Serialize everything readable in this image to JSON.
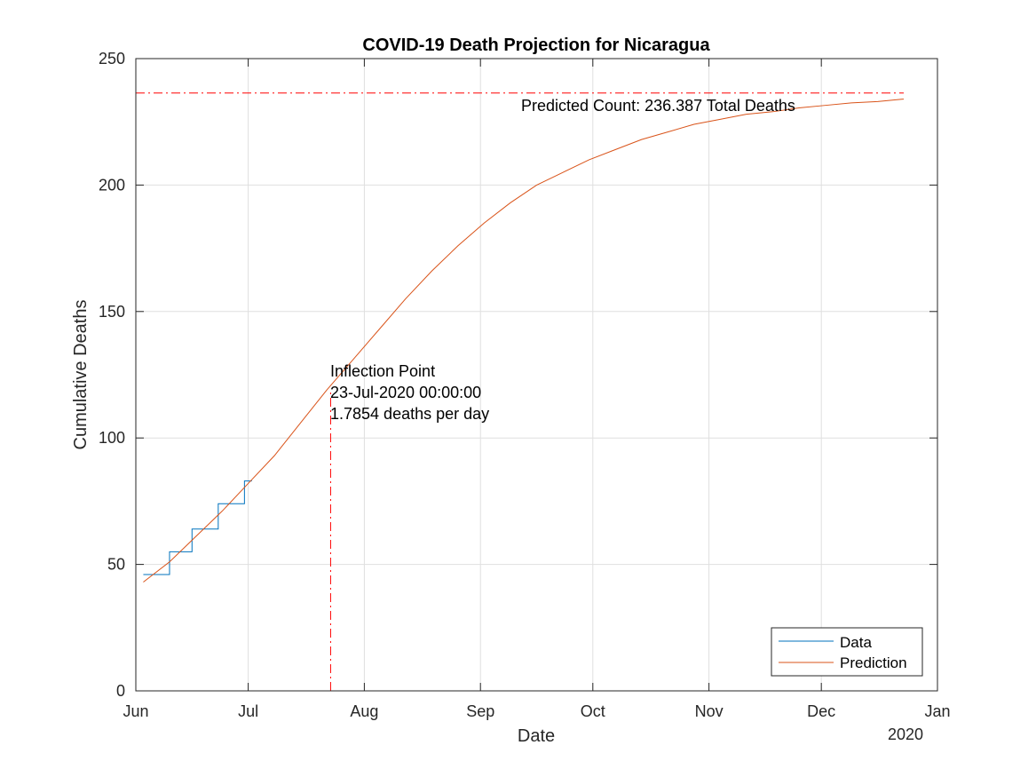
{
  "chart_data": {
    "type": "line",
    "title": "COVID-19 Death Projection for Nicaragua",
    "xlabel": "Date",
    "ylabel": "Cumulative Deaths",
    "x_axis_year_label": "2020",
    "xlim": [
      "2020-06-01",
      "2021-01-01"
    ],
    "ylim": [
      0,
      250
    ],
    "x_ticks": [
      {
        "date": "2020-06-01",
        "label": "Jun"
      },
      {
        "date": "2020-07-01",
        "label": "Jul"
      },
      {
        "date": "2020-08-01",
        "label": "Aug"
      },
      {
        "date": "2020-09-01",
        "label": "Sep"
      },
      {
        "date": "2020-10-01",
        "label": "Oct"
      },
      {
        "date": "2020-11-01",
        "label": "Nov"
      },
      {
        "date": "2020-12-01",
        "label": "Dec"
      },
      {
        "date": "2021-01-01",
        "label": "Jan"
      }
    ],
    "y_ticks": [
      0,
      50,
      100,
      150,
      200,
      250
    ],
    "grid": true,
    "legend_position": "bottom-right",
    "series": [
      {
        "name": "Data",
        "color": "#0072BD",
        "step": true,
        "points": [
          {
            "x": "2020-06-03",
            "y": 46
          },
          {
            "x": "2020-06-10",
            "y": 55
          },
          {
            "x": "2020-06-16",
            "y": 64
          },
          {
            "x": "2020-06-23",
            "y": 74
          },
          {
            "x": "2020-06-30",
            "y": 83
          },
          {
            "x": "2020-07-02",
            "y": 83
          }
        ]
      },
      {
        "name": "Prediction",
        "color": "#D95319",
        "points": [
          {
            "x": "2020-06-03",
            "y": 43
          },
          {
            "x": "2020-06-10",
            "y": 51
          },
          {
            "x": "2020-06-17",
            "y": 61
          },
          {
            "x": "2020-06-24",
            "y": 71
          },
          {
            "x": "2020-07-01",
            "y": 82
          },
          {
            "x": "2020-07-08",
            "y": 93
          },
          {
            "x": "2020-07-15",
            "y": 106
          },
          {
            "x": "2020-07-22",
            "y": 119
          },
          {
            "x": "2020-07-29",
            "y": 131
          },
          {
            "x": "2020-08-05",
            "y": 143
          },
          {
            "x": "2020-08-12",
            "y": 155
          },
          {
            "x": "2020-08-19",
            "y": 166
          },
          {
            "x": "2020-08-26",
            "y": 176
          },
          {
            "x": "2020-09-02",
            "y": 185
          },
          {
            "x": "2020-09-09",
            "y": 193
          },
          {
            "x": "2020-09-16",
            "y": 200
          },
          {
            "x": "2020-09-23",
            "y": 205
          },
          {
            "x": "2020-09-30",
            "y": 210
          },
          {
            "x": "2020-10-07",
            "y": 214
          },
          {
            "x": "2020-10-14",
            "y": 218
          },
          {
            "x": "2020-10-21",
            "y": 221
          },
          {
            "x": "2020-10-28",
            "y": 224
          },
          {
            "x": "2020-11-04",
            "y": 226
          },
          {
            "x": "2020-11-11",
            "y": 228
          },
          {
            "x": "2020-11-18",
            "y": 229
          },
          {
            "x": "2020-11-25",
            "y": 230.5
          },
          {
            "x": "2020-12-02",
            "y": 231.5
          },
          {
            "x": "2020-12-09",
            "y": 232.5
          },
          {
            "x": "2020-12-16",
            "y": 233
          },
          {
            "x": "2020-12-23",
            "y": 234
          }
        ]
      }
    ],
    "reference_lines": {
      "horizontal": {
        "y": 236.387,
        "x_start": "2020-06-01",
        "x_end": "2020-12-23",
        "color": "#FF0000"
      },
      "vertical": {
        "x": "2020-07-23",
        "y_start": 0,
        "y_end": 119,
        "color": "#FF0000"
      }
    },
    "annotations": {
      "predicted_count": "Predicted Count: 236.387 Total Deaths",
      "inflection_title": "Inflection Point",
      "inflection_date": "23-Jul-2020 00:00:00",
      "inflection_rate": "1.7854 deaths per day"
    }
  }
}
